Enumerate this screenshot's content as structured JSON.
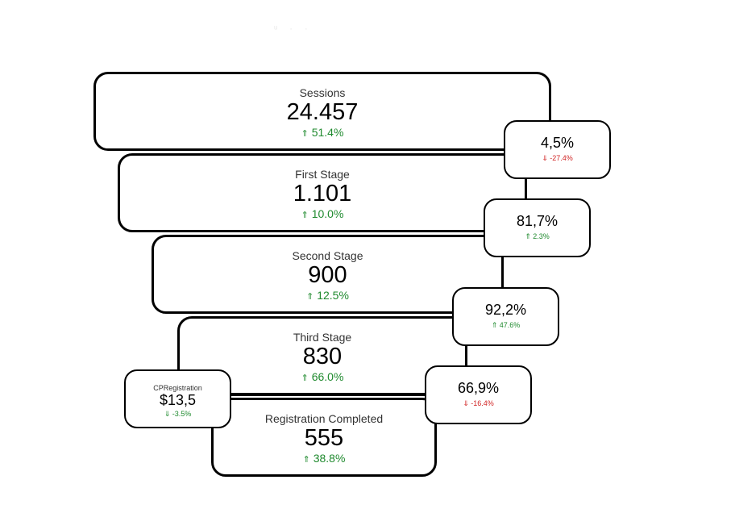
{
  "header": {
    "faint_title": "ᵘ · ·"
  },
  "stages": [
    {
      "label": "Sessions",
      "value": "24.457",
      "change": "51.4%",
      "direction": "up"
    },
    {
      "label": "First Stage",
      "value": "1.101",
      "change": "10.0%",
      "direction": "up"
    },
    {
      "label": "Second Stage",
      "value": "900",
      "change": "12.5%",
      "direction": "up"
    },
    {
      "label": "Third Stage",
      "value": "830",
      "change": "66.0%",
      "direction": "up"
    },
    {
      "label": "Registration Completed",
      "value": "555",
      "change": "38.8%",
      "direction": "up"
    }
  ],
  "conversions": [
    {
      "value": "4,5%",
      "change": "-27.4%",
      "direction": "down"
    },
    {
      "value": "81,7%",
      "change": "2.3%",
      "direction": "up"
    },
    {
      "value": "92,2%",
      "change": "47.6%",
      "direction": "up"
    },
    {
      "value": "66,9%",
      "change": "-16.4%",
      "direction": "down"
    }
  ],
  "cost_per_registration": {
    "label": "CPRegistration",
    "value": "$13,5",
    "change": "-3.5%",
    "direction": "down"
  },
  "icons": {
    "up": "arrow-up-icon",
    "down": "arrow-down-icon"
  },
  "colors": {
    "up": "#1f8a2e",
    "down": "#d12525",
    "border": "#000000"
  }
}
